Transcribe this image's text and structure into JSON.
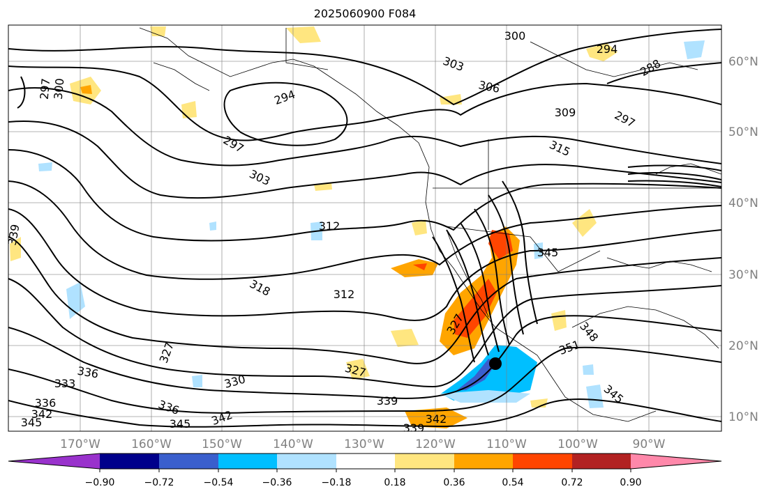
{
  "title": "2025060900 F084",
  "map": {
    "lon_ticks": [
      "170°W",
      "160°W",
      "150°W",
      "140°W",
      "130°W",
      "120°W",
      "110°W",
      "100°W",
      "90°W"
    ],
    "lat_ticks": [
      "60°N",
      "50°N",
      "40°N",
      "30°N",
      "20°N",
      "10°N"
    ],
    "contour_labels": [
      "300",
      "294",
      "288",
      "303",
      "306",
      "309",
      "297",
      "315",
      "294",
      "297",
      "303",
      "312",
      "339",
      "318",
      "312",
      "327",
      "336",
      "333",
      "330",
      "336",
      "342",
      "345",
      "339",
      "342",
      "351",
      "348",
      "345",
      "327",
      "336",
      "342",
      "345",
      "297",
      "300",
      "339",
      "345",
      "327"
    ],
    "storm_marker": "tropical-cyclone-dot"
  },
  "colorbar": {
    "colors": [
      "#9932cc",
      "#00008b",
      "#3a5fcd",
      "#00bfff",
      "#b0e2ff",
      "#ffffff",
      "#ffe680",
      "#ffa500",
      "#ff4500",
      "#b22222",
      "#ff88aa"
    ],
    "tick_labels": [
      "−0.90",
      "−0.72",
      "−0.54",
      "−0.36",
      "−0.18",
      "0.18",
      "0.36",
      "0.54",
      "0.72",
      "0.90"
    ]
  }
}
